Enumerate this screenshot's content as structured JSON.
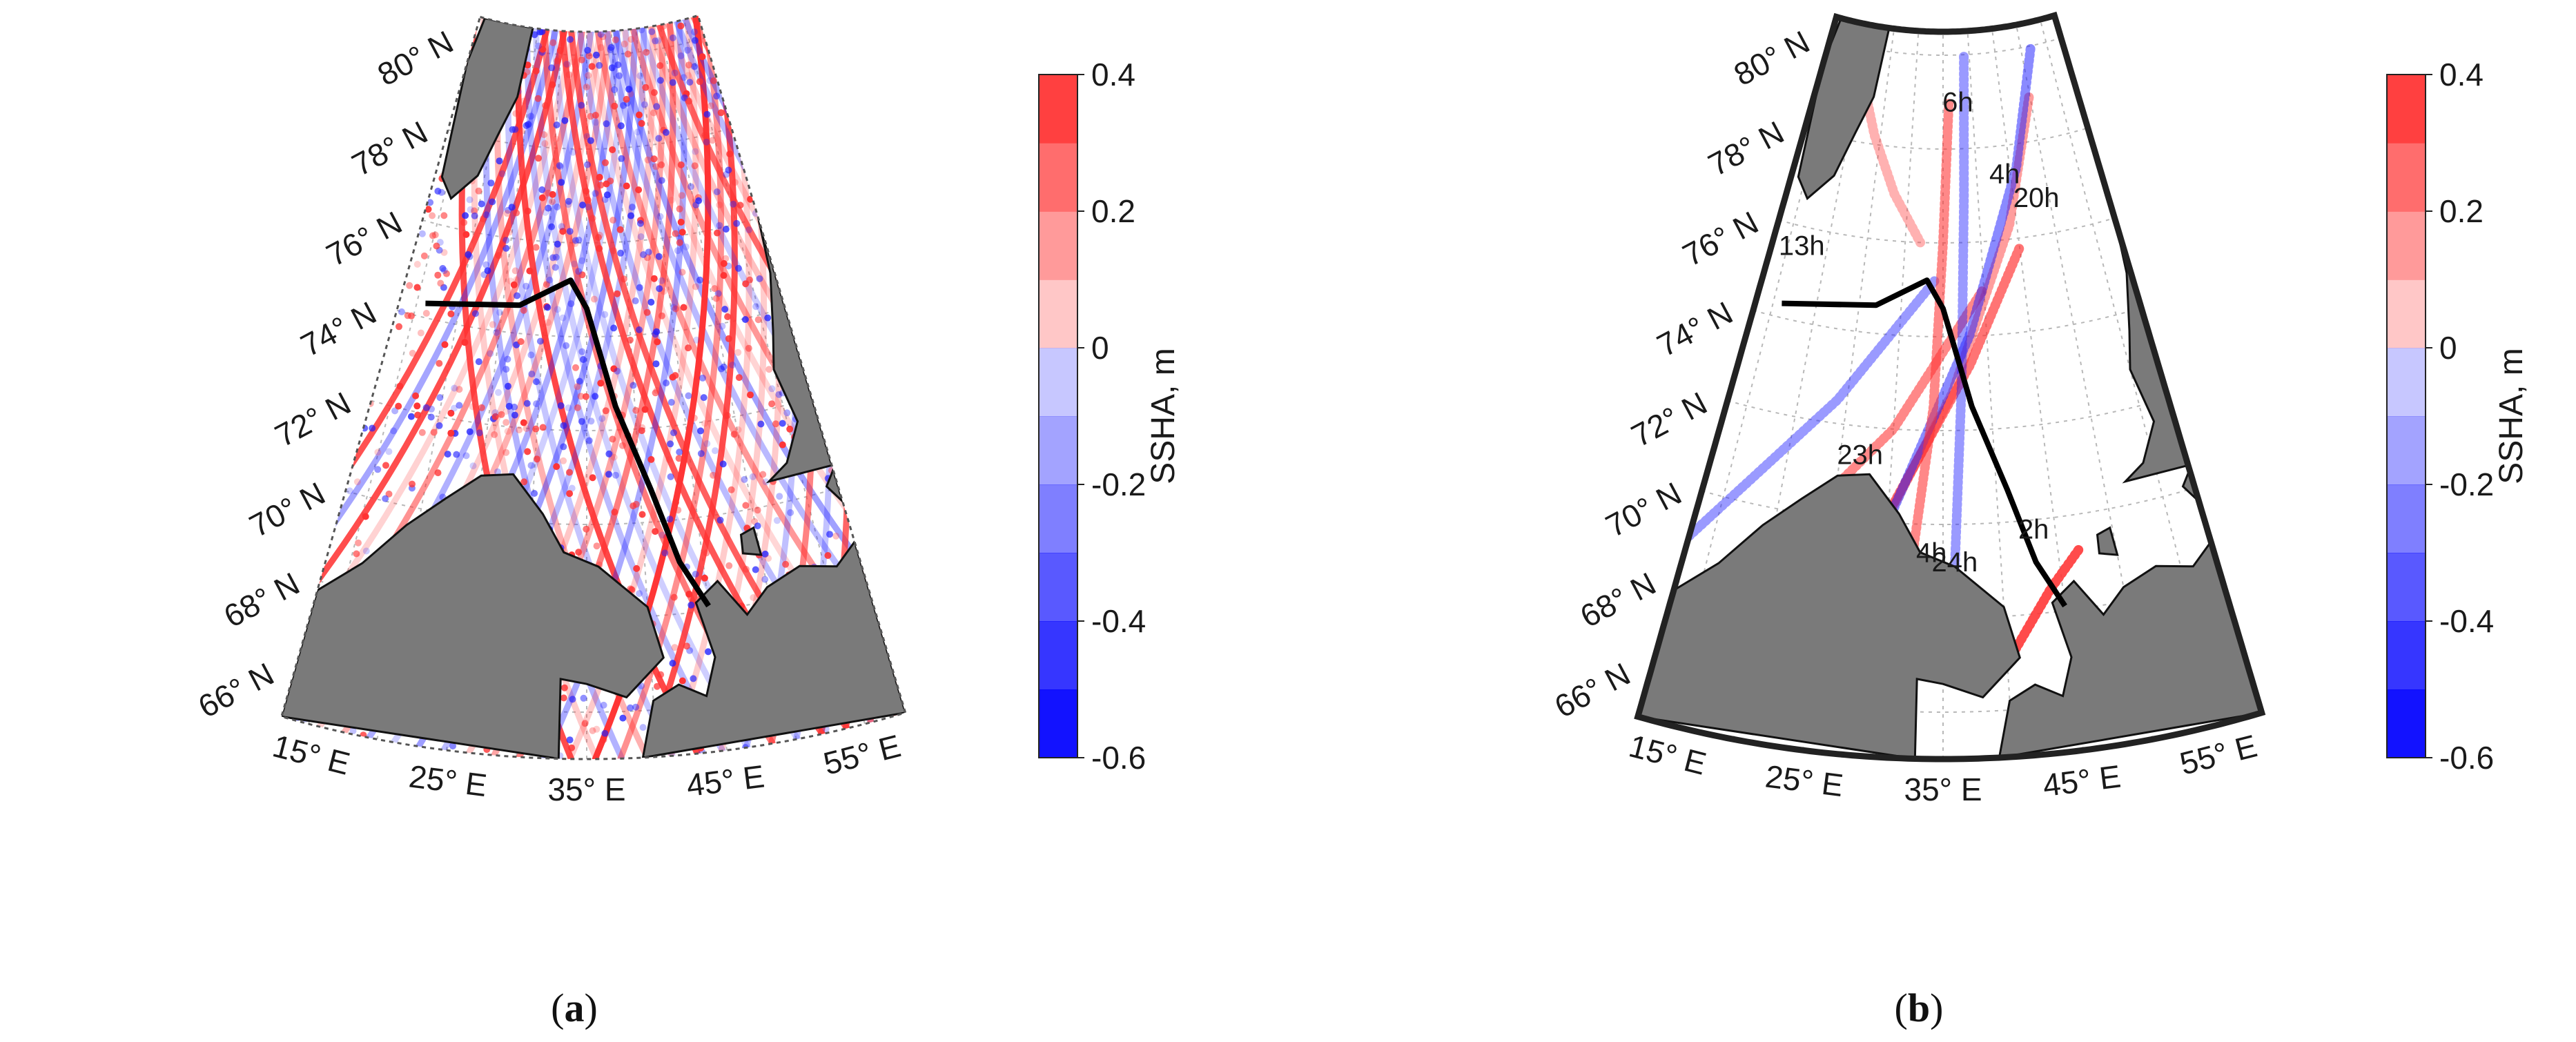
{
  "panels": [
    {
      "id": "a",
      "caption_open": "(",
      "caption_letter": "a",
      "caption_close": ")",
      "lat_labels": [
        "80° N",
        "78° N",
        "76° N",
        "74° N",
        "72° N",
        "70° N",
        "68° N",
        "66° N"
      ],
      "lon_labels": [
        "15° E",
        "25° E",
        "35° E",
        "45° E",
        "55° E"
      ],
      "time_labels": []
    },
    {
      "id": "b",
      "caption_open": "(",
      "caption_letter": "b",
      "caption_close": ")",
      "lat_labels": [
        "80° N",
        "78° N",
        "76° N",
        "74° N",
        "72° N",
        "70° N",
        "68° N",
        "66° N"
      ],
      "lon_labels": [
        "15° E",
        "25° E",
        "35° E",
        "45° E",
        "55° E"
      ],
      "time_labels": [
        "6h",
        "4h",
        "20h",
        "13h",
        "23h",
        "4h",
        "24h",
        "2h"
      ]
    }
  ],
  "colorbar": {
    "label": "SSHA, m",
    "ticks": [
      "0.4",
      "0.2",
      "0",
      "-0.2",
      "-0.4",
      "-0.6"
    ],
    "range": [
      -0.6,
      0.4
    ],
    "step": 0.1
  },
  "colors": {
    "land": "#7a7a7a",
    "track_line": "#000000",
    "positive": "#ff3b3b",
    "negative": "#1a1aff",
    "grid": "#b8b8b8"
  }
}
